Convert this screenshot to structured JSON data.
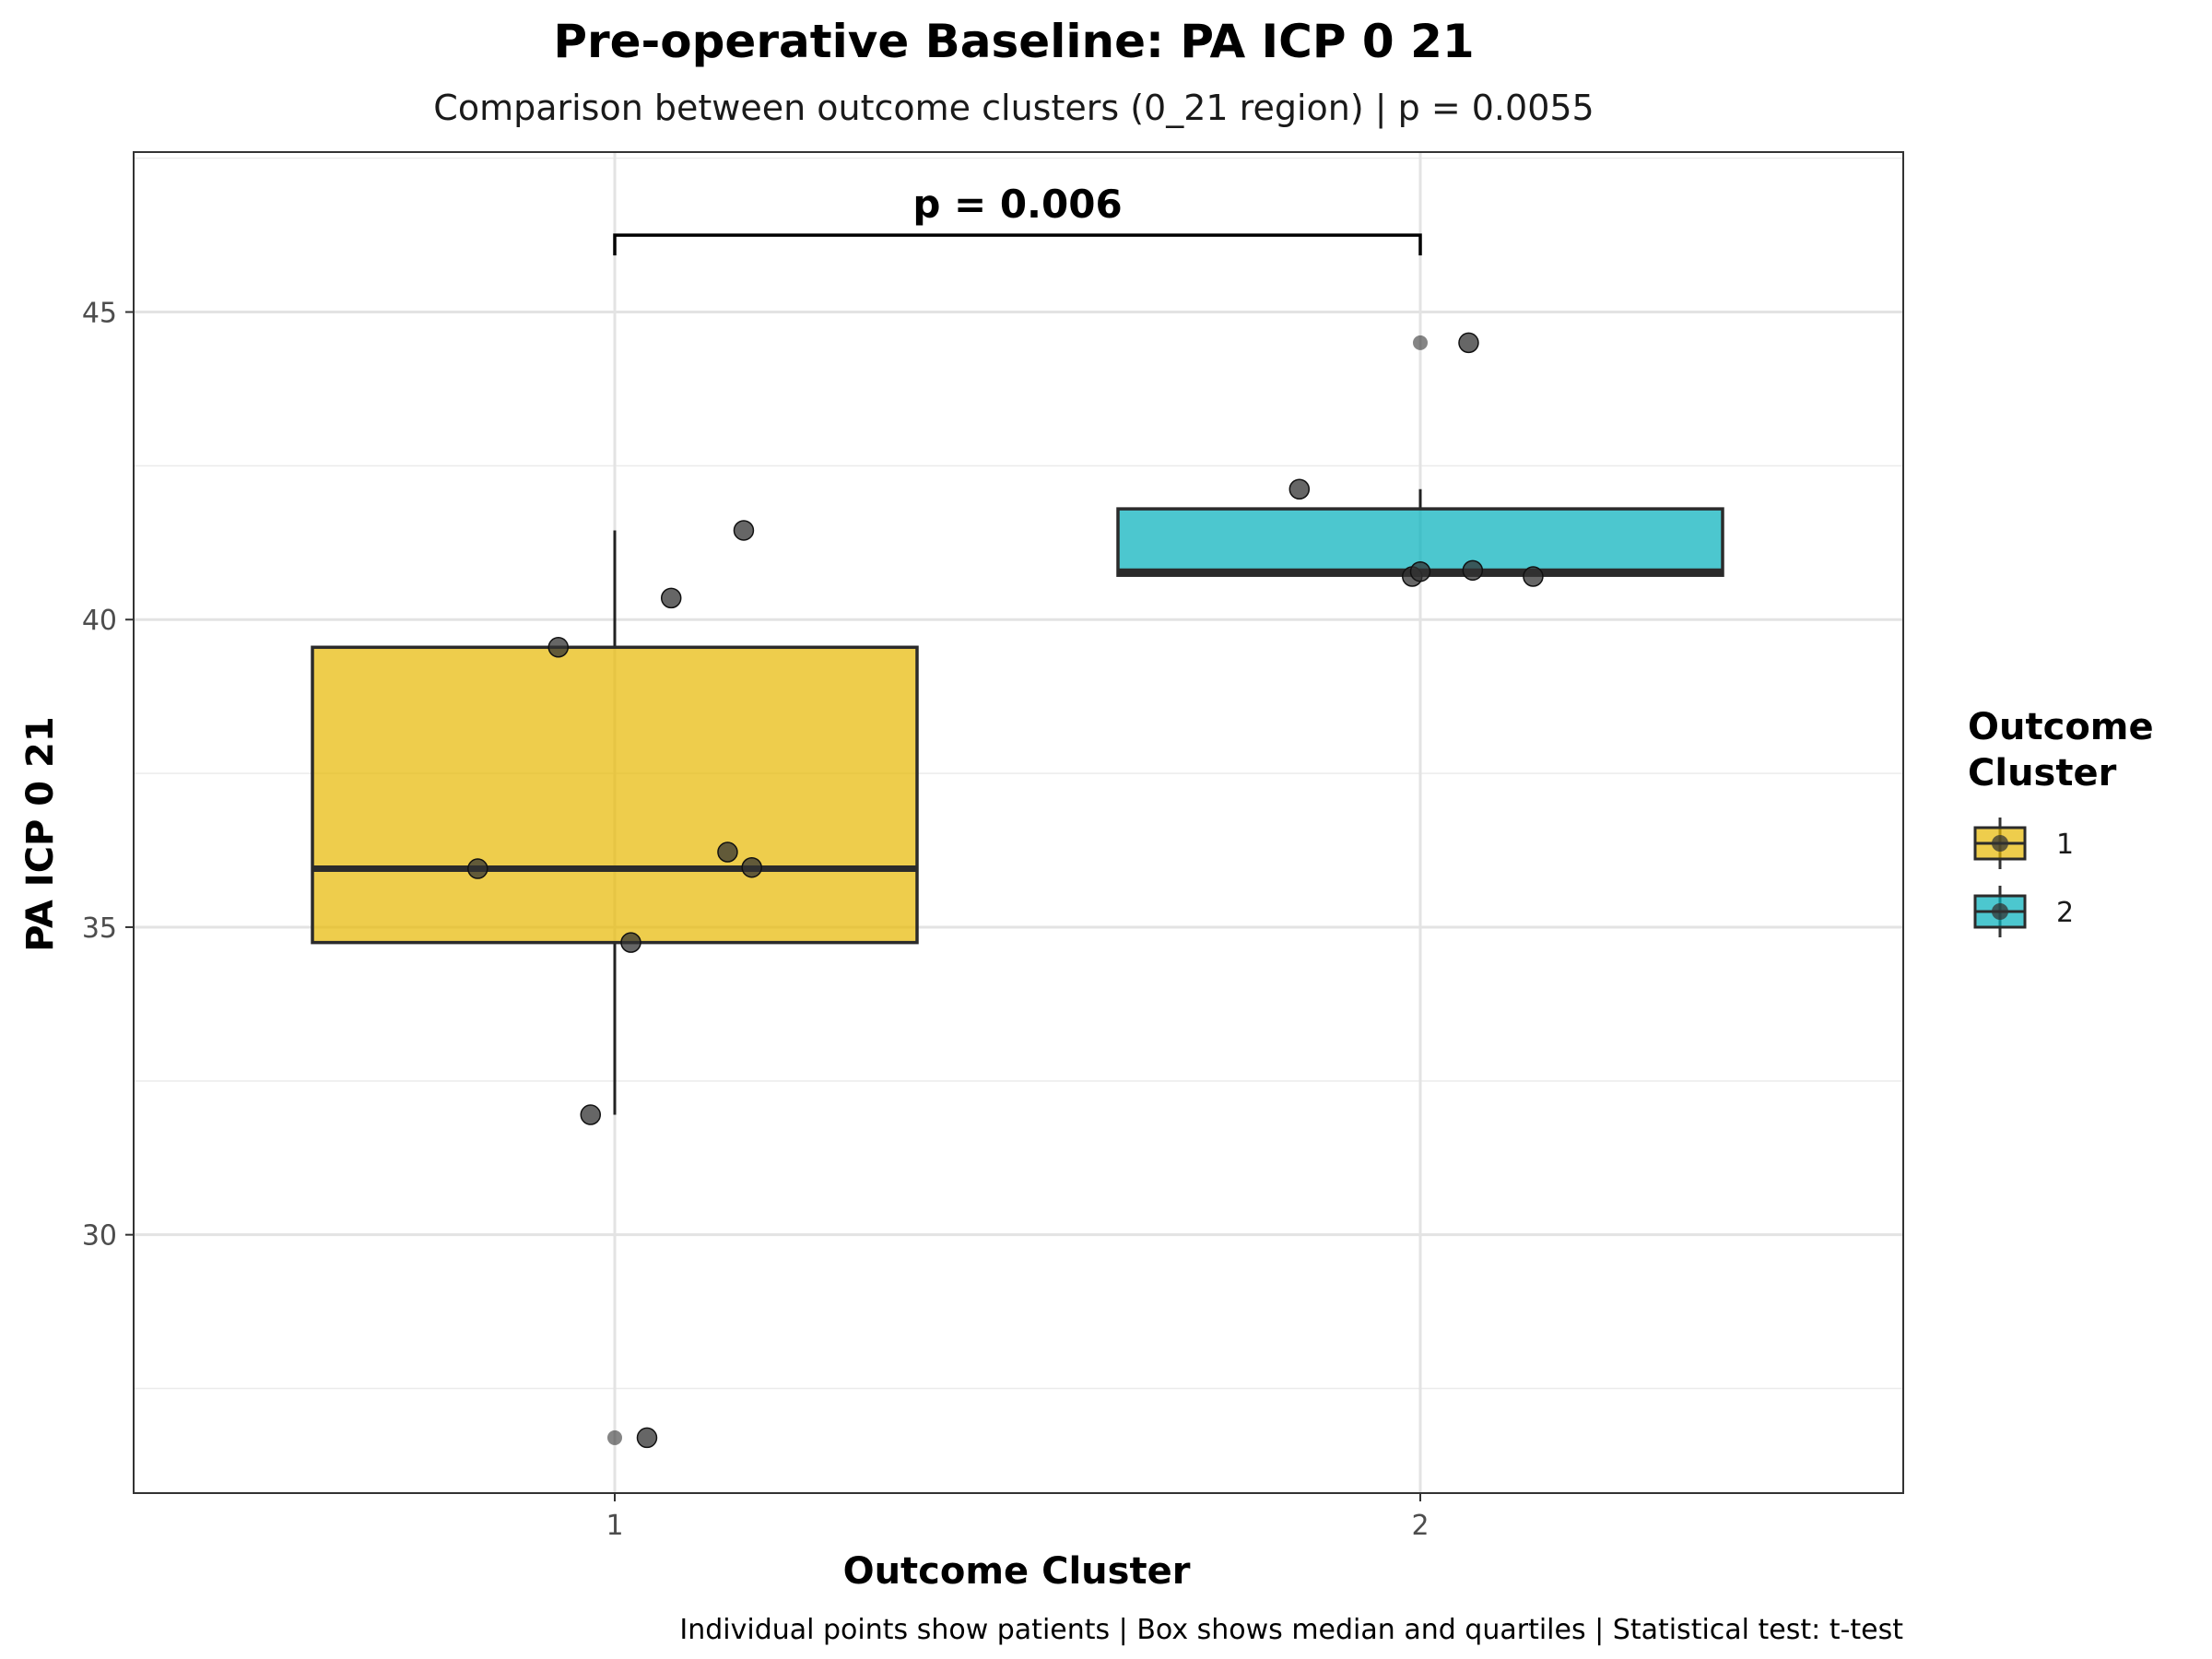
{
  "chart_data": {
    "type": "box",
    "title": "Pre-operative Baseline: PA ICP 0 21",
    "subtitle": "Comparison between outcome clusters (0_21 region) | p = 0.0055",
    "xlabel": "Outcome Cluster",
    "ylabel": "PA ICP 0 21",
    "caption": "Individual points show patients | Box shows median and quartiles | Statistical test: t-test",
    "categories": [
      "1",
      "2"
    ],
    "ylim": [
      25.8,
      47.6
    ],
    "y_ticks": [
      30,
      35,
      40,
      45
    ],
    "y_tick_labels": [
      "30",
      "35",
      "40",
      "45"
    ],
    "grid": true,
    "legend": {
      "title": "Outcome Cluster",
      "title_lines": [
        "Outcome",
        "Cluster"
      ],
      "placement": "right",
      "entries": [
        {
          "label": "1",
          "color": "#E7B800"
        },
        {
          "label": "2",
          "color": "#00AFBB"
        }
      ]
    },
    "boxes": [
      {
        "category": "1",
        "color": "#E7B800",
        "q1": 34.75,
        "median": 35.95,
        "q3": 39.55,
        "whisker_low": 31.95,
        "whisker_high": 41.45
      },
      {
        "category": "2",
        "color": "#00AFBB",
        "q1": 40.72,
        "median": 40.78,
        "q3": 41.8,
        "whisker_low": 40.72,
        "whisker_high": 42.12
      }
    ],
    "outliers": [
      {
        "category": "1",
        "y": 26.7
      },
      {
        "category": "2",
        "y": 44.5
      }
    ],
    "points": [
      {
        "category": "1",
        "offset": 0.16,
        "y": 41.45
      },
      {
        "category": "1",
        "offset": 0.07,
        "y": 40.35
      },
      {
        "category": "1",
        "offset": -0.07,
        "y": 39.55
      },
      {
        "category": "1",
        "offset": 0.14,
        "y": 36.22
      },
      {
        "category": "1",
        "offset": 0.17,
        "y": 35.97
      },
      {
        "category": "1",
        "offset": -0.17,
        "y": 35.95
      },
      {
        "category": "1",
        "offset": 0.02,
        "y": 34.75
      },
      {
        "category": "1",
        "offset": -0.03,
        "y": 31.95
      },
      {
        "category": "1",
        "offset": 0.04,
        "y": 26.7
      },
      {
        "category": "2",
        "offset": 0.06,
        "y": 44.5
      },
      {
        "category": "2",
        "offset": -0.15,
        "y": 42.12
      },
      {
        "category": "2",
        "offset": -0.01,
        "y": 40.7
      },
      {
        "category": "2",
        "offset": 0.0,
        "y": 40.78
      },
      {
        "category": "2",
        "offset": 0.065,
        "y": 40.8
      },
      {
        "category": "2",
        "offset": 0.14,
        "y": 40.7
      }
    ],
    "significance": {
      "from": "1",
      "to": "2",
      "label": "p = 0.006",
      "y": 46.25
    }
  }
}
